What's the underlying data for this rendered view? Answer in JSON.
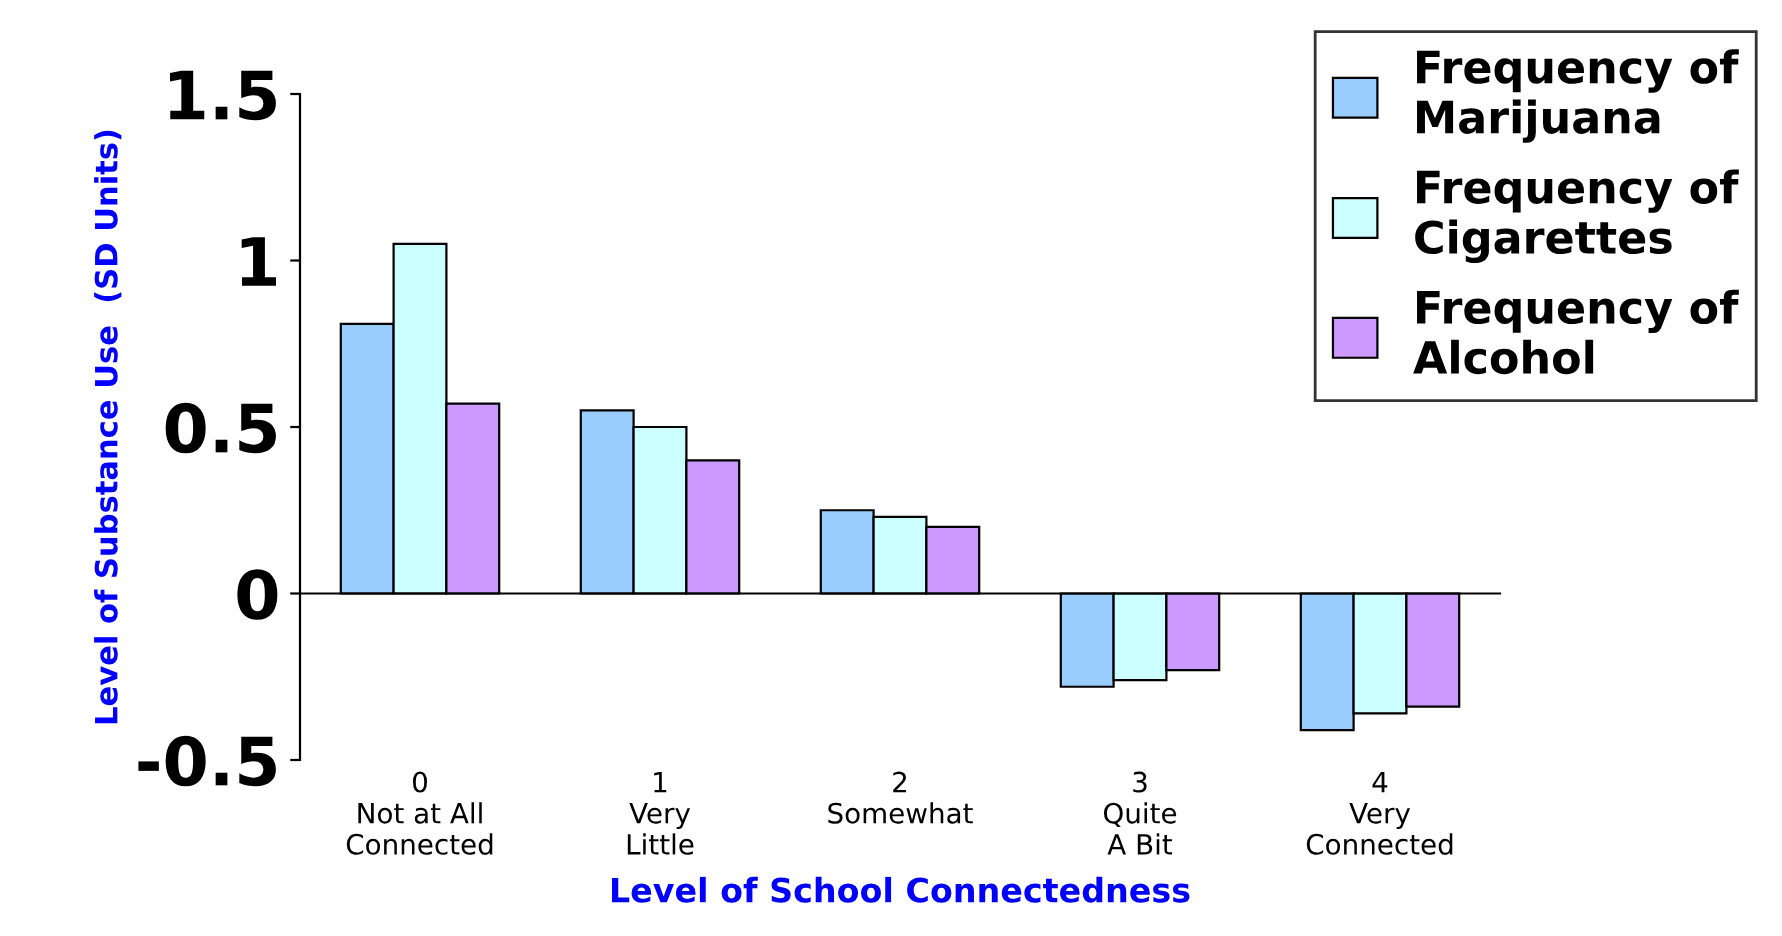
{
  "chart_data": {
    "type": "bar",
    "categories": [
      "0\nNot at All\nConnected",
      "1\nVery\nLittle",
      "2\nSomewhat",
      "3\nQuite\nA Bit",
      "4\nVery\nConnected"
    ],
    "series": [
      {
        "name": "Frequency of\nMarijuana",
        "color": "#99ccff",
        "values": [
          0.81,
          0.55,
          0.25,
          -0.28,
          -0.41
        ]
      },
      {
        "name": "Frequency of\nCigarettes",
        "color": "#ccffff",
        "values": [
          1.05,
          0.5,
          0.23,
          -0.26,
          -0.36
        ]
      },
      {
        "name": "Frequency of\nAlcohol",
        "color": "#cc99ff",
        "values": [
          0.57,
          0.4,
          0.2,
          -0.23,
          -0.34
        ]
      }
    ],
    "xlabel": "Level of School Connectedness",
    "ylabel": "Level of Substance Use  (SD Units)",
    "ylim": [
      -0.5,
      1.5
    ],
    "yticks": [
      -0.5,
      0,
      0.5,
      1,
      1.5
    ],
    "legend": "top right"
  }
}
